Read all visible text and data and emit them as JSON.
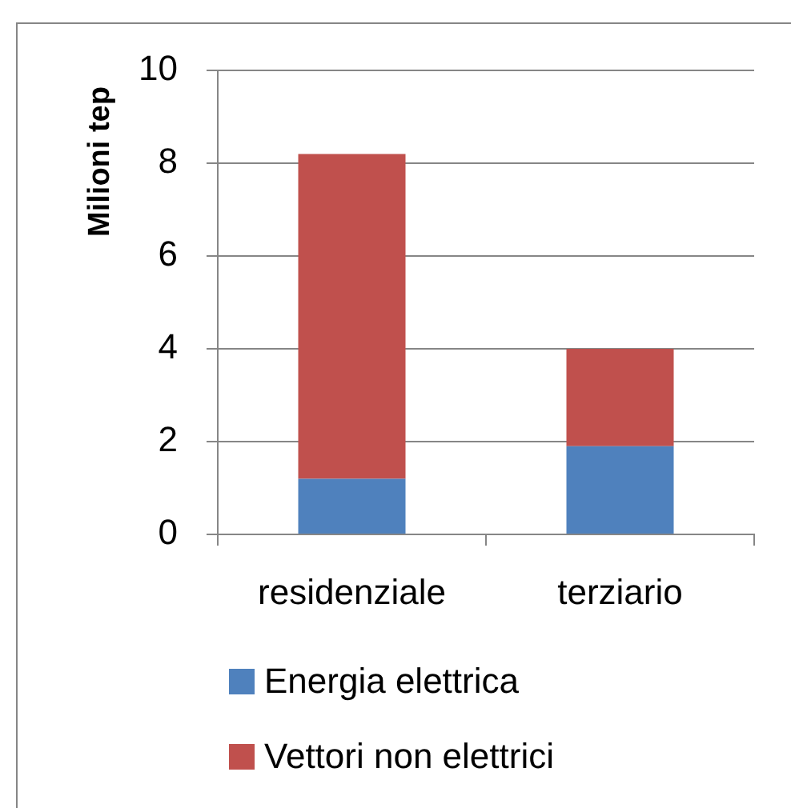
{
  "chart_data": {
    "type": "bar",
    "ylabel": "Milioni tep",
    "categories": [
      "residenziale",
      "terziario"
    ],
    "series": [
      {
        "name": "Energia elettrica",
        "color": "#4f81bd",
        "values": [
          1.2,
          1.9
        ]
      },
      {
        "name": "Vettori non elettrici",
        "color": "#c0504d",
        "values": [
          7.0,
          2.1
        ]
      }
    ],
    "stacked": true,
    "ylim": [
      0,
      10
    ],
    "yticks": [
      0,
      2,
      4,
      6,
      8,
      10
    ],
    "grid": "y",
    "legend": "bottom"
  }
}
